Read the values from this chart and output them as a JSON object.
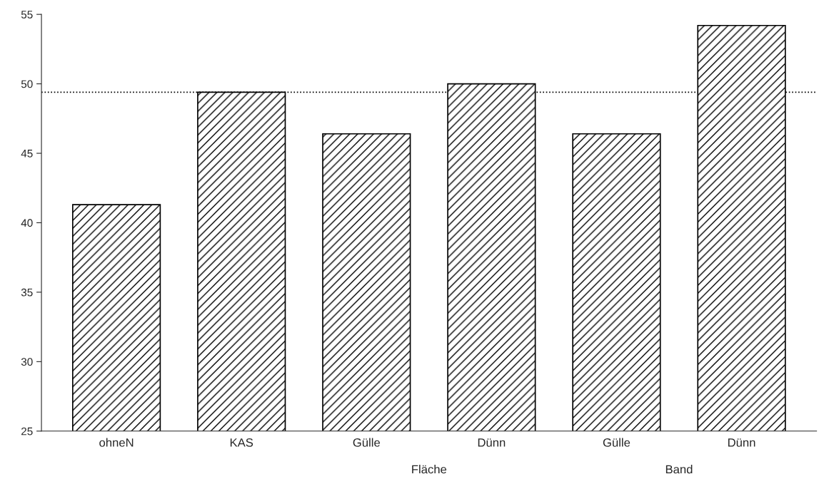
{
  "chart_data": {
    "type": "bar",
    "categories": [
      "ohneN",
      "KAS",
      "Gülle",
      "Dünn",
      "Gülle",
      "Dünn"
    ],
    "values": [
      41.3,
      49.4,
      46.4,
      50.0,
      46.4,
      54.2
    ],
    "color": "#000000",
    "ylim": [
      25,
      55
    ],
    "yticks": [
      25,
      30,
      35,
      40,
      45,
      50,
      55
    ],
    "grid": false,
    "ref_lines": [
      {
        "axis": "y",
        "value": 49.4,
        "line_style": "dotted",
        "color": "#000000"
      }
    ],
    "annotations": [
      "Fläche",
      "Band"
    ]
  }
}
